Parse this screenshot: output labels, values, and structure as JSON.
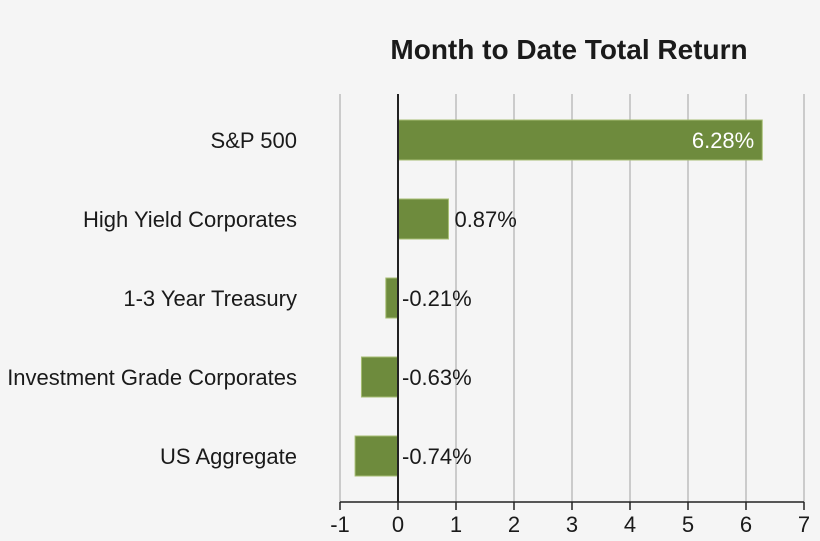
{
  "chart_data": {
    "type": "bar",
    "orientation": "horizontal",
    "title": "Month to Date Total Return",
    "xlabel": "",
    "ylabel": "",
    "categories": [
      "S&P 500",
      "High Yield Corporates",
      "1-3 Year Treasury",
      "Investment Grade Corporates",
      "US Aggregate"
    ],
    "values": [
      6.28,
      0.87,
      -0.21,
      -0.63,
      -0.74
    ],
    "data_labels": [
      "6.28%",
      "0.87%",
      "-0.21%",
      "-0.63%",
      "-0.74%"
    ],
    "xlim": [
      -1,
      7
    ],
    "xticks": [
      -1,
      0,
      1,
      2,
      3,
      4,
      5,
      6,
      7
    ],
    "xtick_labels": [
      "-1",
      "0",
      "1",
      "2",
      "3",
      "4",
      "5",
      "6",
      "7"
    ],
    "grid": "vertical",
    "legend": "none",
    "colors": {
      "bar": "#6e8b3d",
      "bar_border": "#a6bd72",
      "grid": "#bdbdbd",
      "axis": "#222222",
      "background": "#f5f5f5",
      "text": "#1a1a1a",
      "inside_label": "#ffffff"
    }
  }
}
